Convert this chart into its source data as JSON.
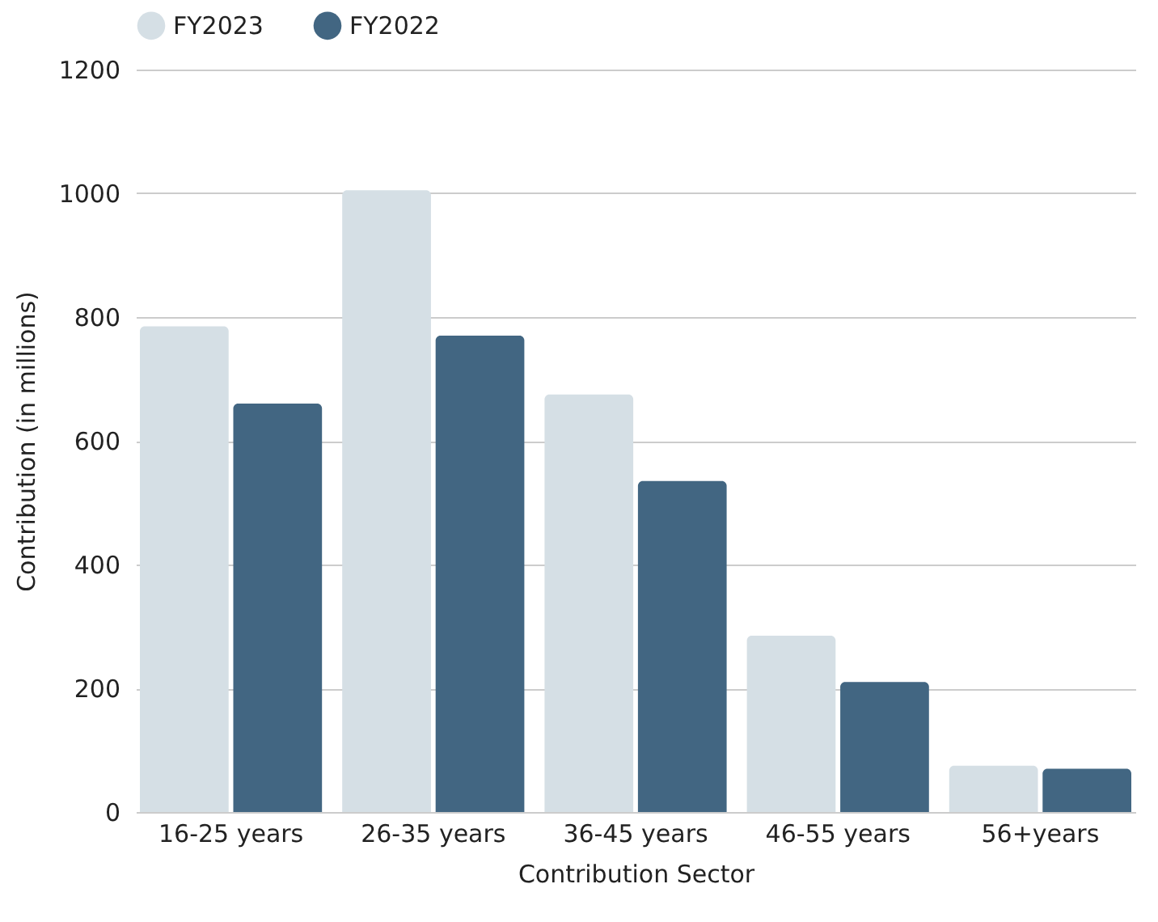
{
  "chart_data": {
    "type": "bar",
    "xlabel": "Contribution Sector",
    "ylabel": "Contribution (in millions)",
    "categories": [
      "16-25 years",
      "26-35 years",
      "36-45 years",
      "46-55 years",
      "56+years"
    ],
    "series": [
      {
        "name": "FY2023",
        "color": "#d5dfe5",
        "values": [
          785,
          1005,
          675,
          285,
          75
        ]
      },
      {
        "name": "FY2022",
        "color": "#426682",
        "values": [
          660,
          770,
          535,
          210,
          70
        ]
      }
    ],
    "ylim": [
      0,
      1200
    ],
    "yticks": [
      0,
      200,
      400,
      600,
      800,
      1000,
      1200
    ],
    "grid": "y",
    "legend": "top"
  }
}
